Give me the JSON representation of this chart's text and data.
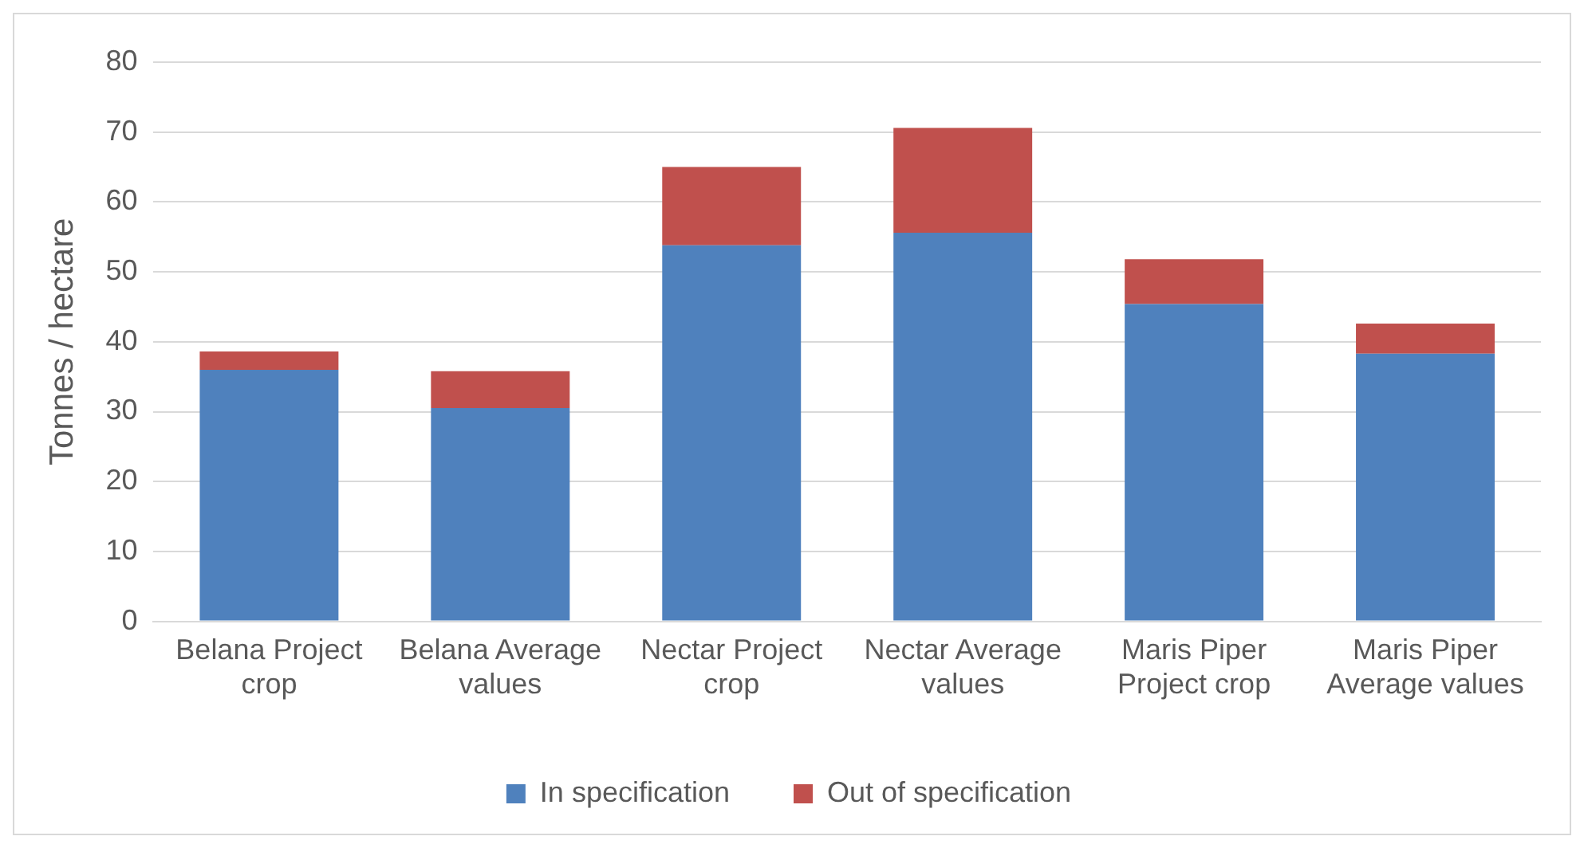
{
  "chart_data": {
    "type": "bar",
    "stacked": true,
    "ylabel": "Tonnes / hectare",
    "categories": [
      "Belana Project crop",
      "Belana Average values",
      "Nectar Project crop",
      "Nectar Average values",
      "Maris Piper Project crop",
      "Maris Piper Average values"
    ],
    "series": [
      {
        "name": "In specification",
        "color": "#4f81bd",
        "values": [
          36.0,
          30.5,
          53.8,
          55.6,
          45.4,
          38.3
        ]
      },
      {
        "name": "Out of specification",
        "color": "#c0504d",
        "values": [
          2.6,
          5.3,
          11.2,
          15.0,
          6.4,
          4.3
        ]
      }
    ],
    "ylim": [
      0,
      80
    ],
    "yticks": [
      0,
      10,
      20,
      30,
      40,
      50,
      60,
      70,
      80
    ],
    "grid": "y",
    "legend": "bottom"
  }
}
